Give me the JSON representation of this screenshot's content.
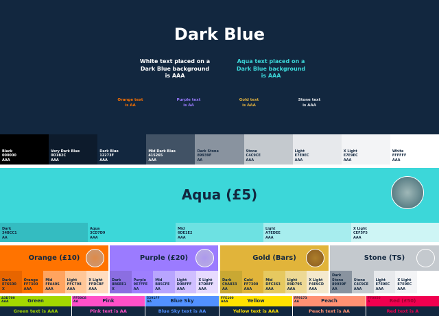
{
  "header": {
    "title": "Dark Blue",
    "white_text": "White text placed on a\nDark Blue background\nis AAA",
    "aqua_text": "Aqua text placed on a\nDark Blue background\nis AAA",
    "small": [
      {
        "text": "Orange text\nis AA",
        "color": "#FF7300"
      },
      {
        "text": "Purple text\nis AA",
        "color": "#9B7BFF"
      },
      {
        "text": "Gold text\nis AAA",
        "color": "#E3B33F"
      },
      {
        "text": "Stone text\nis AAA",
        "color": "#E7E9EC"
      }
    ]
  },
  "dark_swatches": [
    {
      "name": "Black",
      "hex": "000000",
      "rating": "AAA",
      "bg": "#000000",
      "fg": "#fff"
    },
    {
      "name": "Very Dark Blue",
      "hex": "0D1B2C",
      "rating": "AAA",
      "bg": "#0D1B2C",
      "fg": "#fff"
    },
    {
      "name": "Dark Blue",
      "hex": "12273F",
      "rating": "AAA",
      "bg": "#12273F",
      "fg": "#fff"
    },
    {
      "name": "Mid Dark Blue",
      "hex": "415265",
      "rating": "AAA",
      "bg": "#415265",
      "fg": "#fff"
    },
    {
      "name": "Dark Stone",
      "hex": "89939F",
      "rating": "AA",
      "bg": "#89939F",
      "fg": "#12273F"
    },
    {
      "name": "Stone",
      "hex": "C4C9CE",
      "rating": "AAA",
      "bg": "#C4C9CE",
      "fg": "#12273F"
    },
    {
      "name": "Light",
      "hex": "E7E9EC",
      "rating": "AAA",
      "bg": "#E7E9EC",
      "fg": "#12273F"
    },
    {
      "name": "X Light",
      "hex": "E7E9EC",
      "rating": "AAA",
      "bg": "#F3F4F6",
      "fg": "#12273F"
    },
    {
      "name": "White",
      "hex": "FFFFFF",
      "rating": "AAA",
      "bg": "#FFFFFF",
      "fg": "#12273F"
    }
  ],
  "aqua": {
    "title": "Aqua (£5)",
    "swatches": [
      {
        "name": "Dark",
        "hex": "34BCC1",
        "rating": "AA",
        "bg": "#34BCC1"
      },
      {
        "name": "Aqua",
        "hex": "3CD7D9",
        "rating": "AAA",
        "bg": "#3CD7D9"
      },
      {
        "name": "Mid",
        "hex": "6DE1E2",
        "rating": "AAA",
        "bg": "#6DE1E2"
      },
      {
        "name": "Light",
        "hex": "A7EDEE",
        "rating": "AAA",
        "bg": "#A7EDEE"
      },
      {
        "name": "X Light",
        "hex": "CEF5F5",
        "rating": "AAA",
        "bg": "#CEF5F5"
      }
    ]
  },
  "panels": [
    {
      "title": "Orange (£10)",
      "bg": "#FF7300",
      "coin": "#c89a7a",
      "swatches": [
        {
          "name": "Dark E76500",
          "hex": "",
          "rating": "X",
          "bg": "#E76500"
        },
        {
          "name": "Orange",
          "hex": "FF7300 AAA",
          "rating": "",
          "bg": "#FF7300"
        },
        {
          "name": "Mid",
          "hex": "FFA40S",
          "rating": "AAA",
          "bg": "#FFA460"
        },
        {
          "name": "Light",
          "hex": "FFC798",
          "rating": "AAA",
          "bg": "#FFC798"
        },
        {
          "name": "X Light",
          "hex": "FFDCBF",
          "rating": "AAA",
          "bg": "#FFDCBF"
        }
      ]
    },
    {
      "title": "Purple (£20)",
      "bg": "#9B7BFF",
      "coin": "#b9aee0",
      "swatches": [
        {
          "name": "Dark",
          "hex": "8B6EE1",
          "rating": "X",
          "bg": "#8B6EE1"
        },
        {
          "name": "Purple",
          "hex": "9E7FFE",
          "rating": "AA",
          "bg": "#9E7FFE"
        },
        {
          "name": "Mid",
          "hex": "B85CFE",
          "rating": "AA",
          "bg": "#B8A5FE"
        },
        {
          "name": "Light",
          "hex": "D0BFFF",
          "rating": "AAA",
          "bg": "#D0BFFF"
        },
        {
          "name": "X Light",
          "hex": "E7DBFF",
          "rating": "AAA",
          "bg": "#E7DBFF"
        }
      ]
    },
    {
      "title": "Gold (Bars)",
      "bg": "#E1B43A",
      "coin": "#8a5a20",
      "swatches": [
        {
          "name": "Dark C9A833",
          "hex": "",
          "rating": "AA",
          "bg": "#C9A833"
        },
        {
          "name": "Gold",
          "hex": "FF7300 AAA",
          "rating": "",
          "bg": "#E1B43A"
        },
        {
          "name": "Mid",
          "hex": "DFC363",
          "rating": "AAA",
          "bg": "#E6C960"
        },
        {
          "name": "Light",
          "hex": "E9D795",
          "rating": "AAA",
          "bg": "#EDD995"
        },
        {
          "name": "X Light",
          "hex": "F4E9CD",
          "rating": "AAA",
          "bg": "#F4E9CD"
        }
      ]
    },
    {
      "title": "Stone (TS)",
      "bg": "#C4C9CE",
      "coin": "#555",
      "swatches": [
        {
          "name": "Dark Stone",
          "hex": "89939F",
          "rating": "AA",
          "bg": "#89939F"
        },
        {
          "name": "Stone",
          "hex": "C4C9CE",
          "rating": "AAA",
          "bg": "#C4C9CE"
        },
        {
          "name": "Light",
          "hex": "E7E9EC",
          "rating": "AAA",
          "bg": "#E7E9EC"
        },
        {
          "name": "X Light",
          "hex": "E7E9EC",
          "rating": "AAA",
          "bg": "#F3F4F6"
        },
        {
          "name": "",
          "hex": "",
          "rating": "",
          "bg": "#FFFFFF"
        }
      ]
    }
  ],
  "accents": [
    {
      "name": "Green",
      "code": "A3D700\nAAA",
      "text": "Green text is AAA",
      "bg": "#A3D700"
    },
    {
      "name": "Pink",
      "code": "FF50C8\nAA",
      "text": "Pink text is AA",
      "bg": "#FF50C8"
    },
    {
      "name": "Blue Sky",
      "code": "5291FF\nAA",
      "text": "Blue Sky text is AA",
      "bg": "#5291FF"
    },
    {
      "name": "Yellow",
      "code": "FFE100\nAAA",
      "text": "Yellow text is AAA",
      "bg": "#FFE100"
    },
    {
      "name": "Peach",
      "code": "FF9173\nAA",
      "text": "Peach text is AA",
      "bg": "#FF9173"
    },
    {
      "name": "Red (£50)",
      "code": "FF0050\nA",
      "text": "Red text is A",
      "bg": "#F0004F"
    }
  ]
}
